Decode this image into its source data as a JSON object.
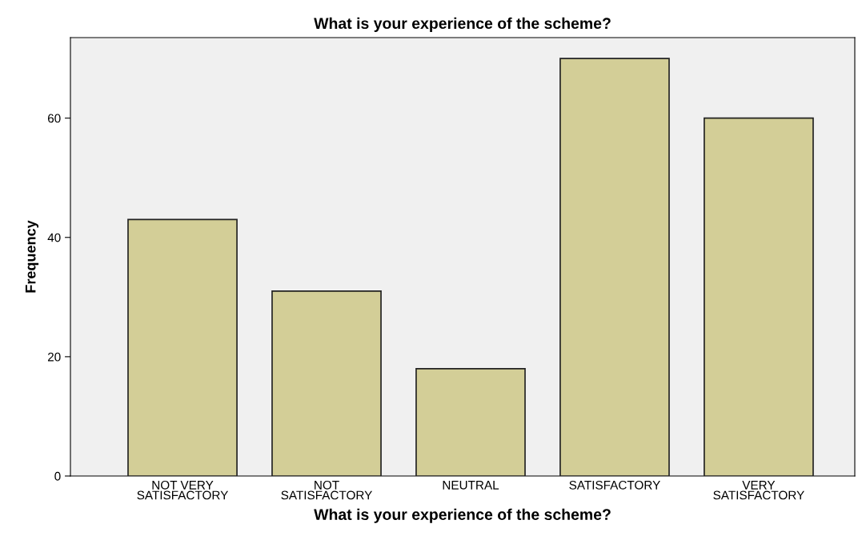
{
  "chart_data": {
    "type": "bar",
    "title": "What is your experience of the scheme?",
    "xlabel": "What is your experience of the scheme?",
    "ylabel": "Frequency",
    "categories": [
      "NOT VERY\nSATISFACTORY",
      "NOT\nSATISFACTORY",
      "NEUTRAL",
      "SATISFACTORY",
      "VERY\nSATISFACTORY"
    ],
    "values": [
      43,
      31,
      18,
      70,
      60
    ],
    "color": "#d3ce97",
    "ylim": [
      0,
      73.5
    ],
    "yticks": [
      0,
      20,
      40,
      60
    ],
    "grid": false
  }
}
